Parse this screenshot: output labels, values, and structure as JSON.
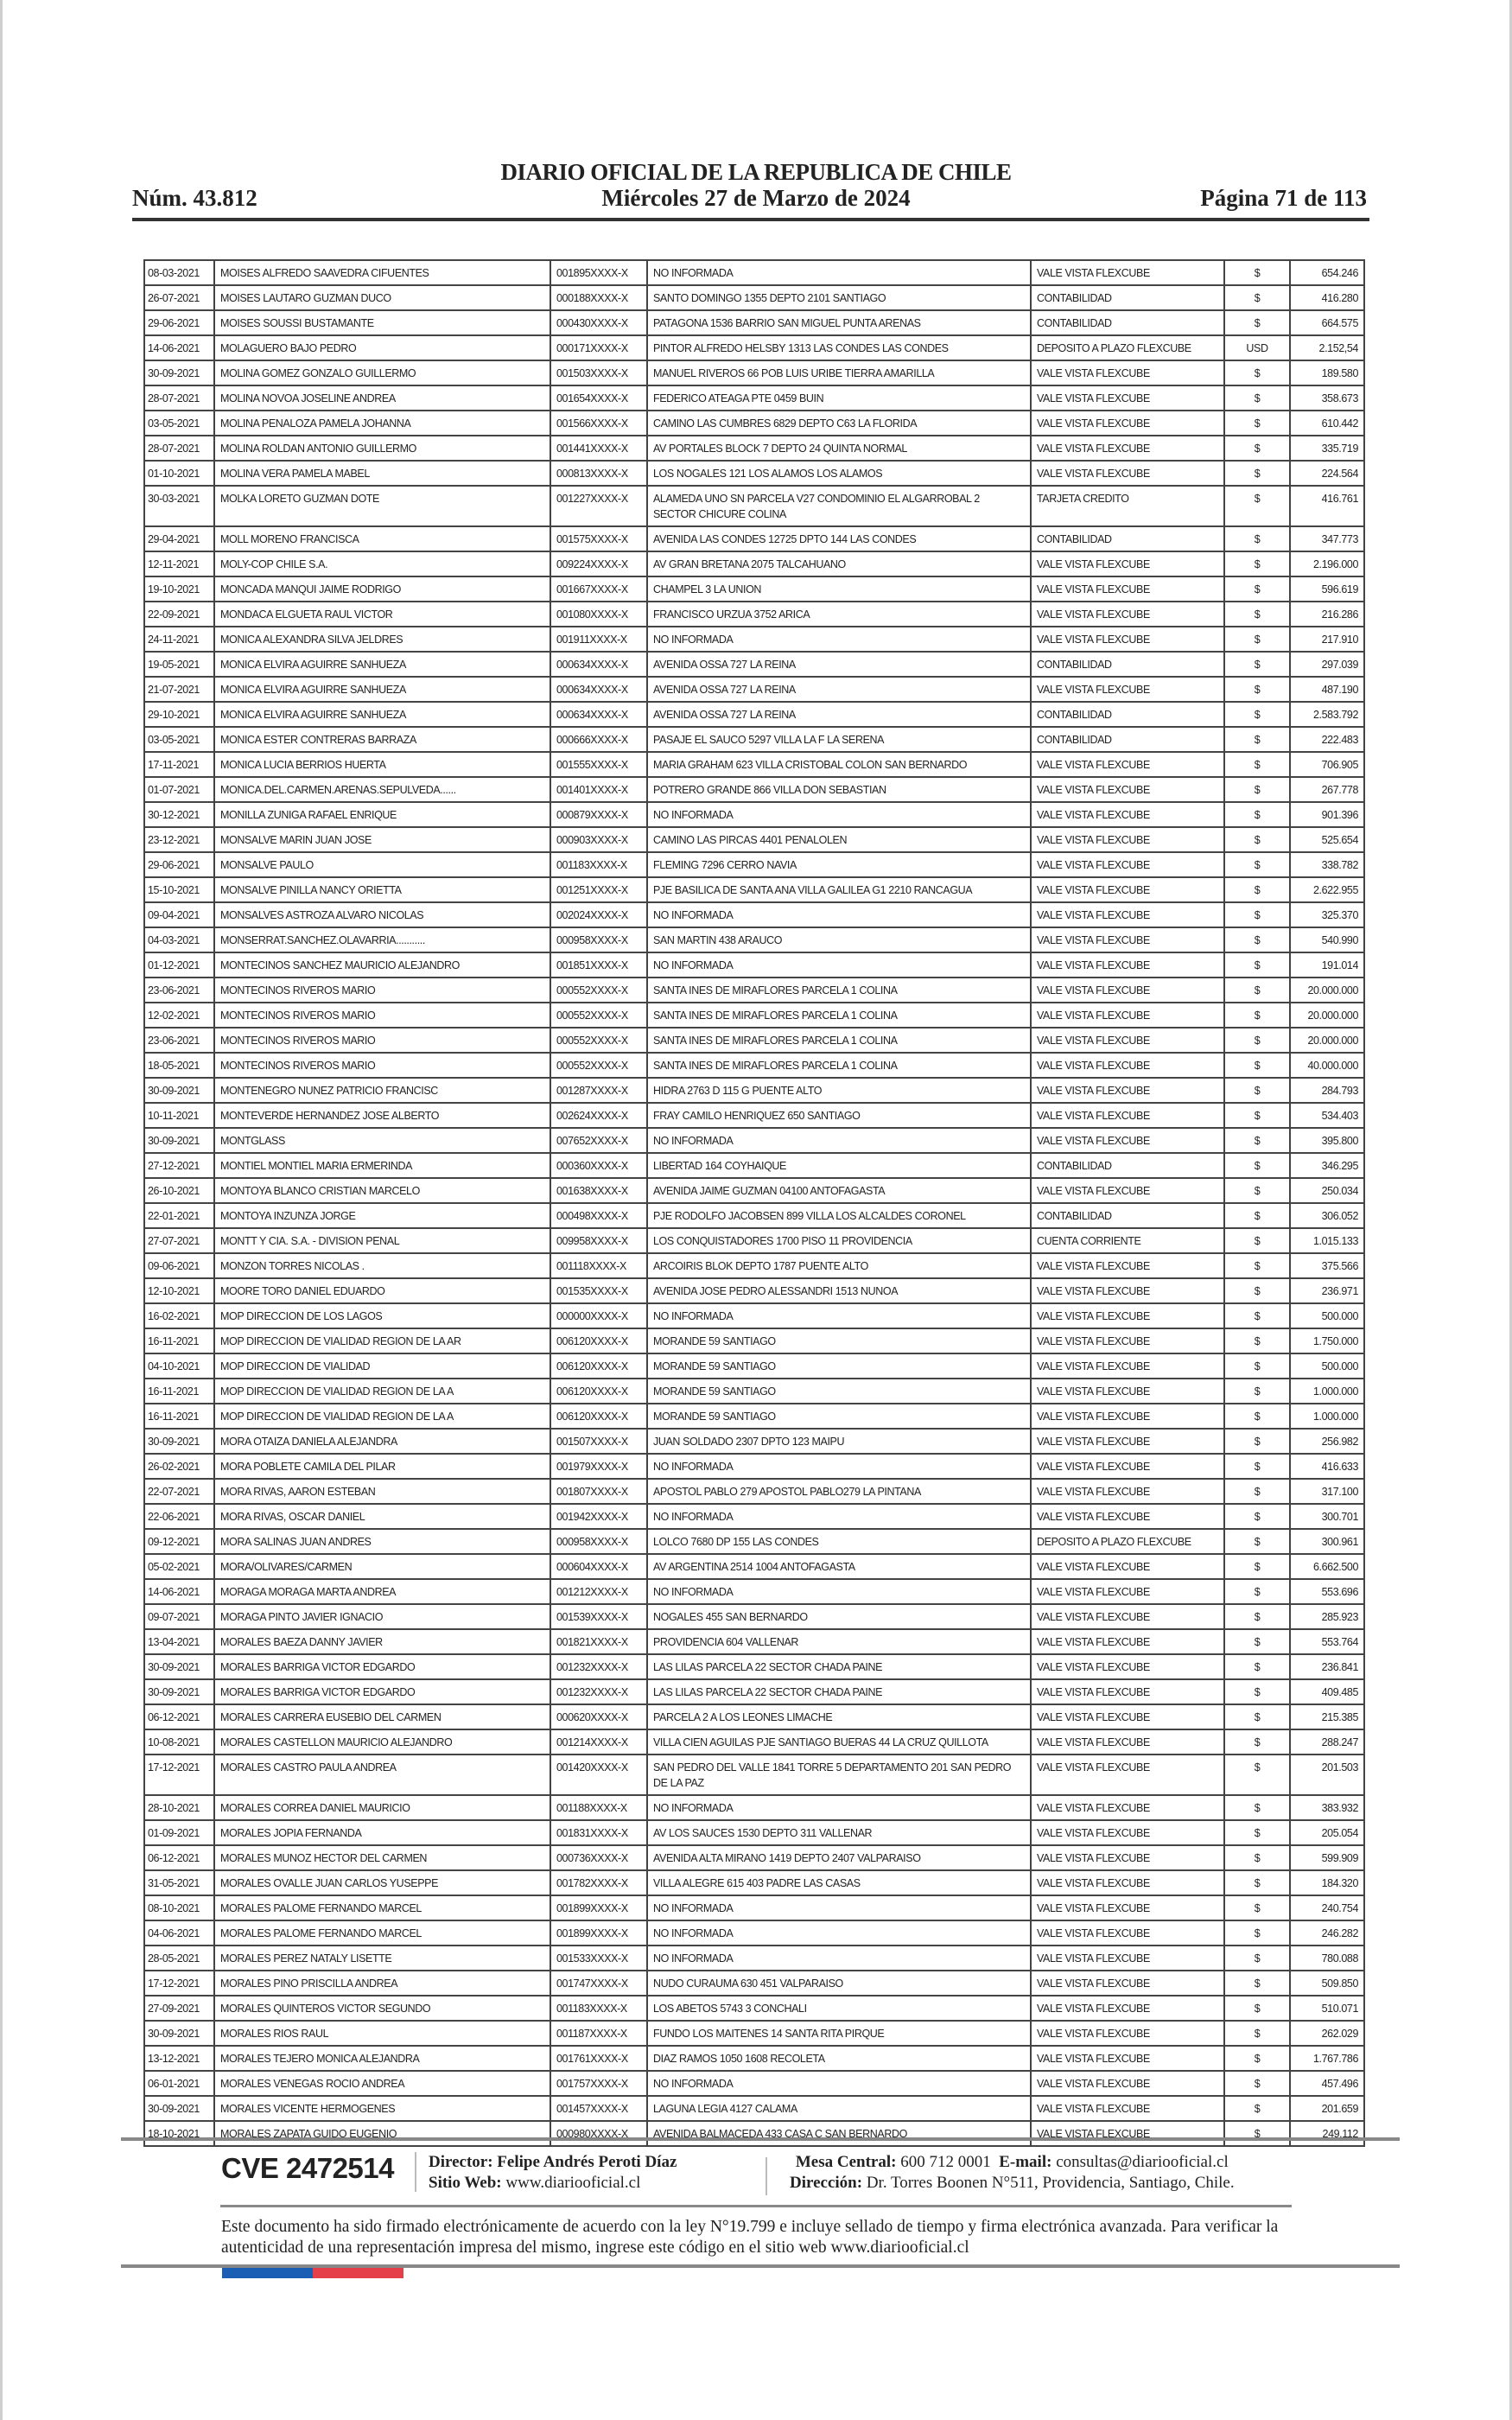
{
  "header": {
    "title": "DIARIO OFICIAL DE LA REPUBLICA DE CHILE",
    "number": "Núm. 43.812",
    "date": "Miércoles 27 de Marzo de 2024",
    "page": "Página 71 de 113"
  },
  "rows": [
    [
      "08-03-2021",
      "MOISES ALFREDO SAAVEDRA CIFUENTES",
      "001895XXXX-X",
      "NO INFORMADA",
      "VALE VISTA FLEXCUBE",
      "$",
      "654.246"
    ],
    [
      "26-07-2021",
      "MOISES LAUTARO GUZMAN DUCO",
      "000188XXXX-X",
      "SANTO DOMINGO 1355 DEPTO 2101 SANTIAGO",
      "CONTABILIDAD",
      "$",
      "416.280"
    ],
    [
      "29-06-2021",
      "MOISES SOUSSI BUSTAMANTE",
      "000430XXXX-X",
      "PATAGONA 1536 BARRIO SAN MIGUEL PUNTA ARENAS",
      "CONTABILIDAD",
      "$",
      "664.575"
    ],
    [
      "14-06-2021",
      "MOLAGUERO BAJO PEDRO",
      "000171XXXX-X",
      "PINTOR ALFREDO HELSBY 1313 LAS CONDES LAS CONDES",
      "DEPOSITO A PLAZO FLEXCUBE",
      "USD",
      "2.152,54"
    ],
    [
      "30-09-2021",
      "MOLINA GOMEZ GONZALO GUILLERMO",
      "001503XXXX-X",
      "MANUEL RIVEROS 66 POB LUIS URIBE TIERRA AMARILLA",
      "VALE VISTA FLEXCUBE",
      "$",
      "189.580"
    ],
    [
      "28-07-2021",
      "MOLINA NOVOA JOSELINE ANDREA",
      "001654XXXX-X",
      "FEDERICO ATEAGA PTE 0459 BUIN",
      "VALE VISTA FLEXCUBE",
      "$",
      "358.673"
    ],
    [
      "03-05-2021",
      "MOLINA PENALOZA PAMELA JOHANNA",
      "001566XXXX-X",
      "CAMINO LAS CUMBRES 6829 DEPTO C63 LA FLORIDA",
      "VALE VISTA FLEXCUBE",
      "$",
      "610.442"
    ],
    [
      "28-07-2021",
      "MOLINA ROLDAN ANTONIO GUILLERMO",
      "001441XXXX-X",
      "AV PORTALES BLOCK 7 DEPTO 24 QUINTA NORMAL",
      "VALE VISTA FLEXCUBE",
      "$",
      "335.719"
    ],
    [
      "01-10-2021",
      "MOLINA VERA PAMELA MABEL",
      "000813XXXX-X",
      "LOS NOGALES 121 LOS ALAMOS LOS ALAMOS",
      "VALE VISTA FLEXCUBE",
      "$",
      "224.564"
    ],
    [
      "30-03-2021",
      "MOLKA LORETO GUZMAN DOTE",
      "001227XXXX-X",
      "ALAMEDA UNO SN PARCELA V27 CONDOMINIO EL ALGARROBAL 2 SECTOR CHICURE COLINA",
      "TARJETA CREDITO",
      "$",
      "416.761"
    ],
    [
      "29-04-2021",
      "MOLL MORENO FRANCISCA",
      "001575XXXX-X",
      "AVENIDA LAS CONDES 12725 DPTO 144 LAS CONDES",
      "CONTABILIDAD",
      "$",
      "347.773"
    ],
    [
      "12-11-2021",
      "MOLY-COP CHILE S.A.",
      "009224XXXX-X",
      "AV GRAN BRETANA 2075 TALCAHUANO",
      "VALE VISTA FLEXCUBE",
      "$",
      "2.196.000"
    ],
    [
      "19-10-2021",
      "MONCADA MANQUI JAIME RODRIGO",
      "001667XXXX-X",
      "CHAMPEL 3 LA UNION",
      "VALE VISTA FLEXCUBE",
      "$",
      "596.619"
    ],
    [
      "22-09-2021",
      "MONDACA ELGUETA RAUL VICTOR",
      "001080XXXX-X",
      "FRANCISCO URZUA 3752 ARICA",
      "VALE VISTA FLEXCUBE",
      "$",
      "216.286"
    ],
    [
      "24-11-2021",
      "MONICA ALEXANDRA SILVA JELDRES",
      "001911XXXX-X",
      "NO INFORMADA",
      "VALE VISTA FLEXCUBE",
      "$",
      "217.910"
    ],
    [
      "19-05-2021",
      "MONICA ELVIRA AGUIRRE SANHUEZA",
      "000634XXXX-X",
      "AVENIDA OSSA 727 LA REINA",
      "CONTABILIDAD",
      "$",
      "297.039"
    ],
    [
      "21-07-2021",
      "MONICA ELVIRA AGUIRRE SANHUEZA",
      "000634XXXX-X",
      "AVENIDA OSSA 727 LA REINA",
      "VALE VISTA FLEXCUBE",
      "$",
      "487.190"
    ],
    [
      "29-10-2021",
      "MONICA ELVIRA AGUIRRE SANHUEZA",
      "000634XXXX-X",
      "AVENIDA OSSA 727 LA REINA",
      "CONTABILIDAD",
      "$",
      "2.583.792"
    ],
    [
      "03-05-2021",
      "MONICA ESTER CONTRERAS BARRAZA",
      "000666XXXX-X",
      "PASAJE EL SAUCO 5297 VILLA LA F LA SERENA",
      "CONTABILIDAD",
      "$",
      "222.483"
    ],
    [
      "17-11-2021",
      "MONICA LUCIA BERRIOS HUERTA",
      "001555XXXX-X",
      "MARIA GRAHAM 623 VILLA CRISTOBAL COLON SAN BERNARDO",
      "VALE VISTA FLEXCUBE",
      "$",
      "706.905"
    ],
    [
      "01-07-2021",
      "MONICA.DEL.CARMEN.ARENAS.SEPULVEDA......",
      "001401XXXX-X",
      "POTRERO GRANDE 866 VILLA DON SEBASTIAN",
      "VALE VISTA FLEXCUBE",
      "$",
      "267.778"
    ],
    [
      "30-12-2021",
      "MONILLA ZUNIGA RAFAEL ENRIQUE",
      "000879XXXX-X",
      "NO INFORMADA",
      "VALE VISTA FLEXCUBE",
      "$",
      "901.396"
    ],
    [
      "23-12-2021",
      "MONSALVE MARIN JUAN JOSE",
      "000903XXXX-X",
      "CAMINO LAS PIRCAS 4401 PENALOLEN",
      "VALE VISTA FLEXCUBE",
      "$",
      "525.654"
    ],
    [
      "29-06-2021",
      "MONSALVE PAULO",
      "001183XXXX-X",
      "FLEMING 7296 CERRO NAVIA",
      "VALE VISTA FLEXCUBE",
      "$",
      "338.782"
    ],
    [
      "15-10-2021",
      "MONSALVE PINILLA NANCY ORIETTA",
      "001251XXXX-X",
      "PJE BASILICA DE SANTA ANA VILLA GALILEA G1 2210 RANCAGUA",
      "VALE VISTA FLEXCUBE",
      "$",
      "2.622.955"
    ],
    [
      "09-04-2021",
      "MONSALVES ASTROZA ALVARO NICOLAS",
      "002024XXXX-X",
      "NO INFORMADA",
      "VALE VISTA FLEXCUBE",
      "$",
      "325.370"
    ],
    [
      "04-03-2021",
      "MONSERRAT.SANCHEZ.OLAVARRIA...........",
      "000958XXXX-X",
      "SAN MARTIN 438 ARAUCO",
      "VALE VISTA FLEXCUBE",
      "$",
      "540.990"
    ],
    [
      "01-12-2021",
      "MONTECINOS SANCHEZ MAURICIO ALEJANDRO",
      "001851XXXX-X",
      "NO INFORMADA",
      "VALE VISTA FLEXCUBE",
      "$",
      "191.014"
    ],
    [
      "23-06-2021",
      "MONTECINOS RIVEROS MARIO",
      "000552XXXX-X",
      "SANTA INES DE MIRAFLORES PARCELA 1 COLINA",
      "VALE VISTA FLEXCUBE",
      "$",
      "20.000.000"
    ],
    [
      "12-02-2021",
      "MONTECINOS RIVEROS MARIO",
      "000552XXXX-X",
      "SANTA INES DE MIRAFLORES PARCELA 1 COLINA",
      "VALE VISTA FLEXCUBE",
      "$",
      "20.000.000"
    ],
    [
      "23-06-2021",
      "MONTECINOS RIVEROS MARIO",
      "000552XXXX-X",
      "SANTA INES DE MIRAFLORES PARCELA 1 COLINA",
      "VALE VISTA FLEXCUBE",
      "$",
      "20.000.000"
    ],
    [
      "18-05-2021",
      "MONTECINOS RIVEROS MARIO",
      "000552XXXX-X",
      "SANTA INES DE MIRAFLORES PARCELA 1 COLINA",
      "VALE VISTA FLEXCUBE",
      "$",
      "40.000.000"
    ],
    [
      "30-09-2021",
      "MONTENEGRO NUNEZ PATRICIO FRANCISC",
      "001287XXXX-X",
      "HIDRA 2763 D 115 G PUENTE ALTO",
      "VALE VISTA FLEXCUBE",
      "$",
      "284.793"
    ],
    [
      "10-11-2021",
      "MONTEVERDE HERNANDEZ JOSE ALBERTO",
      "002624XXXX-X",
      "FRAY CAMILO HENRIQUEZ 650 SANTIAGO",
      "VALE VISTA FLEXCUBE",
      "$",
      "534.403"
    ],
    [
      "30-09-2021",
      "MONTGLASS",
      "007652XXXX-X",
      "NO INFORMADA",
      "VALE VISTA FLEXCUBE",
      "$",
      "395.800"
    ],
    [
      "27-12-2021",
      "MONTIEL MONTIEL MARIA ERMERINDA",
      "000360XXXX-X",
      "LIBERTAD 164 COYHAIQUE",
      "CONTABILIDAD",
      "$",
      "346.295"
    ],
    [
      "26-10-2021",
      "MONTOYA BLANCO CRISTIAN MARCELO",
      "001638XXXX-X",
      "AVENIDA JAIME GUZMAN 04100 ANTOFAGASTA",
      "VALE VISTA FLEXCUBE",
      "$",
      "250.034"
    ],
    [
      "22-01-2021",
      "MONTOYA INZUNZA JORGE",
      "000498XXXX-X",
      "PJE RODOLFO JACOBSEN 899 VILLA LOS ALCALDES CORONEL",
      "CONTABILIDAD",
      "$",
      "306.052"
    ],
    [
      "27-07-2021",
      "MONTT Y CIA. S.A. - DIVISION PENAL",
      "009958XXXX-X",
      "LOS CONQUISTADORES 1700 PISO 11 PROVIDENCIA",
      "CUENTA CORRIENTE",
      "$",
      "1.015.133"
    ],
    [
      "09-06-2021",
      "MONZON TORRES NICOLAS .",
      "001118XXXX-X",
      "ARCOIRIS BLOK DEPTO 1787 PUENTE ALTO",
      "VALE VISTA FLEXCUBE",
      "$",
      "375.566"
    ],
    [
      "12-10-2021",
      "MOORE TORO DANIEL EDUARDO",
      "001535XXXX-X",
      "AVENIDA JOSE PEDRO ALESSANDRI 1513 NUNOA",
      "VALE VISTA FLEXCUBE",
      "$",
      "236.971"
    ],
    [
      "16-02-2021",
      "MOP DIRECCION DE LOS LAGOS",
      "000000XXXX-X",
      "NO INFORMADA",
      "VALE VISTA FLEXCUBE",
      "$",
      "500.000"
    ],
    [
      "16-11-2021",
      "MOP DIRECCION DE VIALIDAD REGION DE LA AR",
      "006120XXXX-X",
      "MORANDE 59 SANTIAGO",
      "VALE VISTA FLEXCUBE",
      "$",
      "1.750.000"
    ],
    [
      "04-10-2021",
      "MOP DIRECCION DE VIALIDAD",
      "006120XXXX-X",
      "MORANDE 59 SANTIAGO",
      "VALE VISTA FLEXCUBE",
      "$",
      "500.000"
    ],
    [
      "16-11-2021",
      "MOP DIRECCION DE VIALIDAD REGION DE LA A",
      "006120XXXX-X",
      "MORANDE 59 SANTIAGO",
      "VALE VISTA FLEXCUBE",
      "$",
      "1.000.000"
    ],
    [
      "16-11-2021",
      "MOP DIRECCION DE VIALIDAD REGION DE LA A",
      "006120XXXX-X",
      "MORANDE 59 SANTIAGO",
      "VALE VISTA FLEXCUBE",
      "$",
      "1.000.000"
    ],
    [
      "30-09-2021",
      "MORA OTAIZA DANIELA ALEJANDRA",
      "001507XXXX-X",
      "JUAN SOLDADO 2307 DPTO 123 MAIPU",
      "VALE VISTA FLEXCUBE",
      "$",
      "256.982"
    ],
    [
      "26-02-2021",
      "MORA POBLETE CAMILA DEL PILAR",
      "001979XXXX-X",
      "NO INFORMADA",
      "VALE VISTA FLEXCUBE",
      "$",
      "416.633"
    ],
    [
      "22-07-2021",
      "MORA RIVAS, AARON ESTEBAN",
      "001807XXXX-X",
      "APOSTOL PABLO 279 APOSTOL PABLO279 LA PINTANA",
      "VALE VISTA FLEXCUBE",
      "$",
      "317.100"
    ],
    [
      "22-06-2021",
      "MORA RIVAS, OSCAR DANIEL",
      "001942XXXX-X",
      "NO INFORMADA",
      "VALE VISTA FLEXCUBE",
      "$",
      "300.701"
    ],
    [
      "09-12-2021",
      "MORA SALINAS JUAN ANDRES",
      "000958XXXX-X",
      "LOLCO 7680 DP 155 LAS CONDES",
      "DEPOSITO A PLAZO FLEXCUBE",
      "$",
      "300.961"
    ],
    [
      "05-02-2021",
      "MORA/OLIVARES/CARMEN",
      "000604XXXX-X",
      "AV ARGENTINA 2514 1004 ANTOFAGASTA",
      "VALE VISTA FLEXCUBE",
      "$",
      "6.662.500"
    ],
    [
      "14-06-2021",
      "MORAGA MORAGA MARTA ANDREA",
      "001212XXXX-X",
      "NO INFORMADA",
      "VALE VISTA FLEXCUBE",
      "$",
      "553.696"
    ],
    [
      "09-07-2021",
      "MORAGA PINTO JAVIER IGNACIO",
      "001539XXXX-X",
      "NOGALES 455 SAN BERNARDO",
      "VALE VISTA FLEXCUBE",
      "$",
      "285.923"
    ],
    [
      "13-04-2021",
      "MORALES BAEZA DANNY JAVIER",
      "001821XXXX-X",
      "PROVIDENCIA 604 VALLENAR",
      "VALE VISTA FLEXCUBE",
      "$",
      "553.764"
    ],
    [
      "30-09-2021",
      "MORALES BARRIGA VICTOR EDGARDO",
      "001232XXXX-X",
      "LAS LILAS PARCELA 22 SECTOR CHADA PAINE",
      "VALE VISTA FLEXCUBE",
      "$",
      "236.841"
    ],
    [
      "30-09-2021",
      "MORALES BARRIGA VICTOR EDGARDO",
      "001232XXXX-X",
      "LAS LILAS PARCELA 22 SECTOR CHADA PAINE",
      "VALE VISTA FLEXCUBE",
      "$",
      "409.485"
    ],
    [
      "06-12-2021",
      "MORALES CARRERA EUSEBIO DEL CARMEN",
      "000620XXXX-X",
      "PARCELA 2 A LOS LEONES LIMACHE",
      "VALE VISTA FLEXCUBE",
      "$",
      "215.385"
    ],
    [
      "10-08-2021",
      "MORALES CASTELLON MAURICIO ALEJANDRO",
      "001214XXXX-X",
      "VILLA CIEN AGUILAS PJE SANTIAGO BUERAS 44 LA CRUZ QUILLOTA",
      "VALE VISTA FLEXCUBE",
      "$",
      "288.247"
    ],
    [
      "17-12-2021",
      "MORALES CASTRO PAULA ANDREA",
      "001420XXXX-X",
      "SAN PEDRO DEL VALLE 1841 TORRE 5 DEPARTAMENTO 201 SAN PEDRO DE LA PAZ",
      "VALE VISTA FLEXCUBE",
      "$",
      "201.503"
    ],
    [
      "28-10-2021",
      "MORALES CORREA DANIEL MAURICIO",
      "001188XXXX-X",
      "NO INFORMADA",
      "VALE VISTA FLEXCUBE",
      "$",
      "383.932"
    ],
    [
      "01-09-2021",
      "MORALES JOPIA FERNANDA",
      "001831XXXX-X",
      "AV LOS SAUCES 1530 DEPTO 311 VALLENAR",
      "VALE VISTA FLEXCUBE",
      "$",
      "205.054"
    ],
    [
      "06-12-2021",
      "MORALES MUNOZ HECTOR DEL CARMEN",
      "000736XXXX-X",
      "AVENIDA ALTA MIRANO 1419 DEPTO 2407 VALPARAISO",
      "VALE VISTA FLEXCUBE",
      "$",
      "599.909"
    ],
    [
      "31-05-2021",
      "MORALES OVALLE JUAN CARLOS YUSEPPE",
      "001782XXXX-X",
      "VILLA ALEGRE 615 403 PADRE LAS CASAS",
      "VALE VISTA FLEXCUBE",
      "$",
      "184.320"
    ],
    [
      "08-10-2021",
      "MORALES PALOME FERNANDO MARCEL",
      "001899XXXX-X",
      "NO INFORMADA",
      "VALE VISTA FLEXCUBE",
      "$",
      "240.754"
    ],
    [
      "04-06-2021",
      "MORALES PALOME FERNANDO MARCEL",
      "001899XXXX-X",
      "NO INFORMADA",
      "VALE VISTA FLEXCUBE",
      "$",
      "246.282"
    ],
    [
      "28-05-2021",
      "MORALES PEREZ NATALY LISETTE",
      "001533XXXX-X",
      "NO INFORMADA",
      "VALE VISTA FLEXCUBE",
      "$",
      "780.088"
    ],
    [
      "17-12-2021",
      "MORALES PINO PRISCILLA ANDREA",
      "001747XXXX-X",
      "NUDO CURAUMA 630 451 VALPARAISO",
      "VALE VISTA FLEXCUBE",
      "$",
      "509.850"
    ],
    [
      "27-09-2021",
      "MORALES QUINTEROS VICTOR SEGUNDO",
      "001183XXXX-X",
      "LOS ABETOS 5743 3 CONCHALI",
      "VALE VISTA FLEXCUBE",
      "$",
      "510.071"
    ],
    [
      "30-09-2021",
      "MORALES RIOS RAUL",
      "001187XXXX-X",
      "FUNDO LOS MAITENES 14 SANTA RITA PIRQUE",
      "VALE VISTA FLEXCUBE",
      "$",
      "262.029"
    ],
    [
      "13-12-2021",
      "MORALES TEJERO MONICA ALEJANDRA",
      "001761XXXX-X",
      "DIAZ RAMOS 1050 1608 RECOLETA",
      "VALE VISTA FLEXCUBE",
      "$",
      "1.767.786"
    ],
    [
      "06-01-2021",
      "MORALES VENEGAS ROCIO ANDREA",
      "001757XXXX-X",
      "NO INFORMADA",
      "VALE VISTA FLEXCUBE",
      "$",
      "457.496"
    ],
    [
      "30-09-2021",
      "MORALES VICENTE HERMOGENES",
      "001457XXXX-X",
      "LAGUNA LEGIA 4127 CALAMA",
      "VALE VISTA FLEXCUBE",
      "$",
      "201.659"
    ],
    [
      "18-10-2021",
      "MORALES ZAPATA GUIDO EUGENIO",
      "000980XXXX-X",
      "AVENIDA BALMACEDA 433 CASA C SAN BERNARDO",
      "VALE VISTA FLEXCUBE",
      "$",
      "249.112"
    ]
  ],
  "footer": {
    "cve": "CVE 2472514",
    "director_label": "Director:",
    "director": "Felipe Andrés Peroti Díaz",
    "web_label": "Sitio Web:",
    "web": "www.diariooficial.cl",
    "phone_label": "Mesa Central:",
    "phone": "600 712 0001",
    "email_label": "E-mail:",
    "email": "consultas@diariooficial.cl",
    "address_label": "Dirección:",
    "address": "Dr. Torres Boonen N°511, Providencia, Santiago, Chile.",
    "legal": "Este documento ha sido firmado electrónicamente de acuerdo con la ley N°19.799 e incluye sellado de tiempo y firma electrónica avanzada. Para verificar la autenticidad de una representación impresa del mismo, ingrese este código en el sitio web www.diariooficial.cl",
    "flag_colors": [
      "#1a5fb4",
      "#e5404a"
    ]
  }
}
